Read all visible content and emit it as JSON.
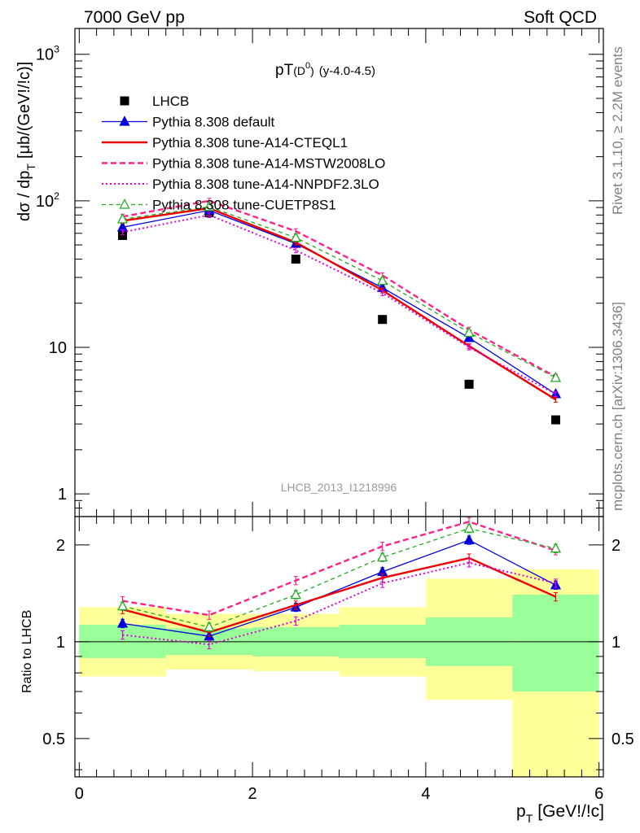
{
  "header": {
    "left": "7000 GeV pp",
    "right": "Soft QCD"
  },
  "side_labels": {
    "rivet": "Rivet 3.1.10, ≥ 2.2M events",
    "mcplots": "mcplots.cern.ch [arXiv:1306.3436]"
  },
  "chart_data": [
    {
      "type": "scatter",
      "panel": "main",
      "title": "pT(D0) (y-4.0-4.5)",
      "title_main": "pT",
      "title_paren_open": "(D",
      "title_sup": "0",
      "title_paren_close": ")",
      "title_tail": "(y-4.0-4.5)",
      "ylabel": "dσ / dp",
      "ylabel_sub": "T",
      "ylabel_tail": "[μb/(GeV!/!c)]",
      "yscale": "log",
      "ylim": [
        0.7,
        1500
      ],
      "xlim": [
        -0.05,
        6.05
      ],
      "yticks": [
        {
          "value": 1,
          "label": "1"
        },
        {
          "value": 10,
          "label": "10"
        },
        {
          "value": 100,
          "label": "10",
          "sup": "2"
        },
        {
          "value": 1000,
          "label": "10",
          "sup": "3"
        }
      ],
      "watermark": "LHCB_2013_I1218996",
      "legend_position": "top-left",
      "x": [
        0.5,
        1.5,
        2.5,
        3.5,
        4.5,
        5.5
      ],
      "series": [
        {
          "name": "LHCB",
          "color": "#000000",
          "style": "data",
          "values": [
            58,
            83,
            40,
            15.5,
            5.6,
            3.2
          ]
        },
        {
          "name": "Pythia 8.308 default",
          "color": "#0000dd",
          "style": "solid-thin",
          "marker": "triangle-filled",
          "values": [
            66,
            86,
            51,
            25.5,
            11.6,
            4.8
          ]
        },
        {
          "name": "Pythia 8.308 tune-A14-CTEQL1",
          "color": "#ee0000",
          "style": "solid-thick",
          "marker": "none",
          "values": [
            73,
            89,
            52,
            24.5,
            10.2,
            4.4
          ]
        },
        {
          "name": "Pythia 8.308 tune-A14-MSTW2008LO",
          "color": "#ff2288",
          "style": "dashed-thick",
          "marker": "none",
          "values": [
            78,
            100,
            62,
            31,
            13.2,
            6.3
          ]
        },
        {
          "name": "Pythia 8.308 tune-A14-NNPDF2.3LO",
          "color": "#dd00dd",
          "style": "dotted",
          "marker": "none",
          "values": [
            61,
            80,
            46,
            23.5,
            10.0,
            4.8
          ]
        },
        {
          "name": "Pythia 8.308 tune-CUETP8S1",
          "color": "#22aa22",
          "style": "dashed-thin",
          "marker": "triangle-open",
          "values": [
            75,
            91,
            56,
            28.5,
            12.6,
            6.2
          ]
        }
      ]
    },
    {
      "type": "scatter",
      "panel": "ratio",
      "ylabel": "Ratio to LHCB",
      "yscale": "log",
      "ylim": [
        0.38,
        2.45
      ],
      "xlim": [
        -0.05,
        6.05
      ],
      "xlabel": "p",
      "xlabel_sub": "T",
      "xlabel_tail": "[GeV!/!c]",
      "xticks": [
        {
          "value": 0,
          "label": "0"
        },
        {
          "value": 2,
          "label": "2"
        },
        {
          "value": 4,
          "label": "4"
        },
        {
          "value": 6,
          "label": "6"
        }
      ],
      "yticks": [
        {
          "value": 0.5,
          "label": "0.5"
        },
        {
          "value": 1,
          "label": "1"
        },
        {
          "value": 2,
          "label": "2"
        }
      ],
      "bands": [
        {
          "x0": 0,
          "x1": 1,
          "yellow": [
            0.78,
            1.28
          ],
          "green": [
            0.89,
            1.13
          ]
        },
        {
          "x0": 1,
          "x1": 2,
          "yellow": [
            0.82,
            1.22
          ],
          "green": [
            0.91,
            1.1
          ]
        },
        {
          "x0": 2,
          "x1": 3,
          "yellow": [
            0.81,
            1.22
          ],
          "green": [
            0.9,
            1.11
          ]
        },
        {
          "x0": 3,
          "x1": 4,
          "yellow": [
            0.78,
            1.28
          ],
          "green": [
            0.89,
            1.13
          ]
        },
        {
          "x0": 4,
          "x1": 5,
          "yellow": [
            0.66,
            1.57
          ],
          "green": [
            0.84,
            1.19
          ]
        },
        {
          "x0": 5,
          "x1": 6,
          "yellow": [
            0.38,
            1.68
          ],
          "green": [
            0.7,
            1.4
          ]
        }
      ],
      "x": [
        0.5,
        1.5,
        2.5,
        3.5,
        4.5,
        5.5
      ],
      "series": [
        {
          "name": "Pythia 8.308 default",
          "color": "#0000dd",
          "style": "solid-thin",
          "marker": "triangle-filled",
          "values": [
            1.14,
            1.04,
            1.28,
            1.65,
            2.07,
            1.5
          ]
        },
        {
          "name": "Pythia 8.308 tune-A14-CTEQL1",
          "color": "#ee0000",
          "style": "solid-thick",
          "marker": "none",
          "values": [
            1.26,
            1.07,
            1.3,
            1.58,
            1.82,
            1.38
          ]
        },
        {
          "name": "Pythia 8.308 tune-A14-MSTW2008LO",
          "color": "#ff2288",
          "style": "dashed-thick",
          "marker": "none",
          "values": [
            1.34,
            1.21,
            1.55,
            1.98,
            2.36,
            1.92
          ]
        },
        {
          "name": "Pythia 8.308 tune-A14-NNPDF2.3LO",
          "color": "#dd00dd",
          "style": "dotted",
          "marker": "none",
          "values": [
            1.05,
            0.98,
            1.16,
            1.52,
            1.76,
            1.52
          ]
        },
        {
          "name": "Pythia 8.308 tune-CUETP8S1",
          "color": "#22aa22",
          "style": "dashed-thin",
          "marker": "triangle-open",
          "values": [
            1.29,
            1.11,
            1.4,
            1.83,
            2.25,
            1.95
          ]
        }
      ]
    }
  ]
}
